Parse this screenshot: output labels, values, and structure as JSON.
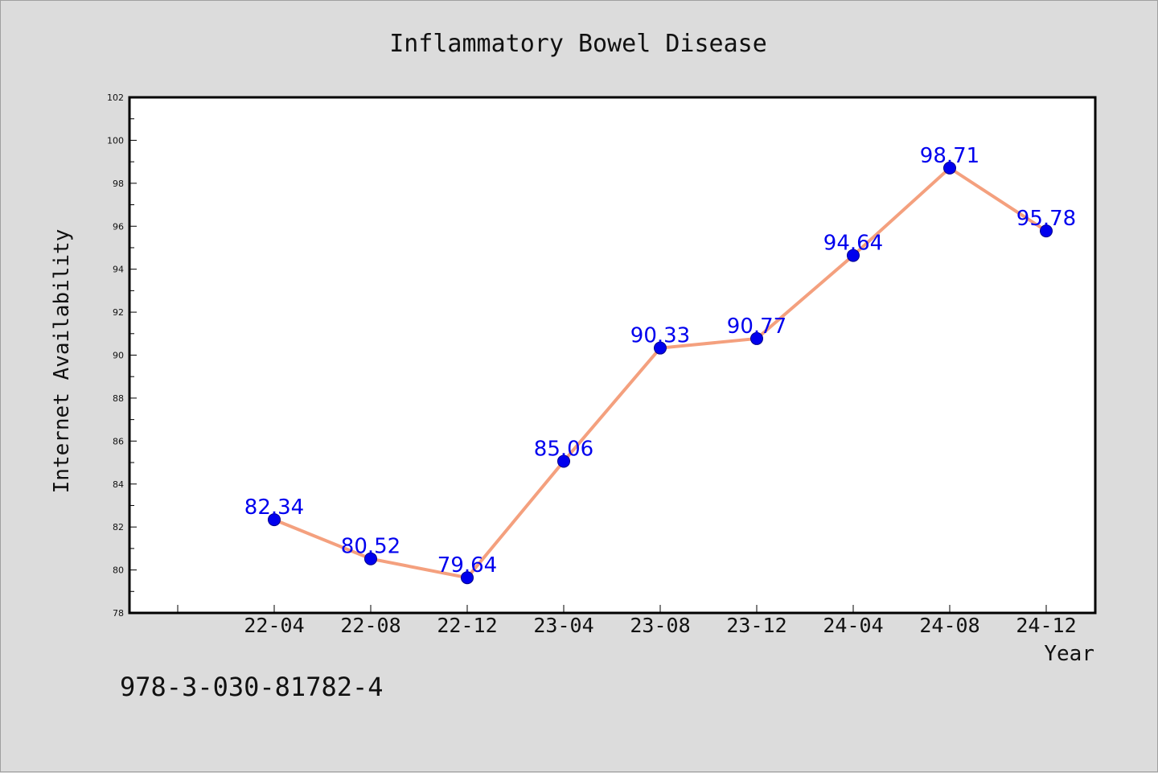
{
  "chart_data": {
    "type": "line",
    "title": "Inflammatory Bowel Disease",
    "xlabel": "Year",
    "ylabel": "Internet Availability",
    "categories": [
      "22-04",
      "22-08",
      "22-12",
      "23-04",
      "23-08",
      "23-12",
      "24-04",
      "24-08",
      "24-12"
    ],
    "series": [
      {
        "values": [
          82.34,
          80.52,
          79.64,
          85.06,
          90.33,
          90.77,
          94.64,
          98.71,
          95.78
        ]
      }
    ],
    "ylim": [
      78,
      102
    ],
    "yticks": [
      "78",
      "80",
      "82",
      "84",
      "86",
      "88",
      "90",
      "92",
      "94",
      "96",
      "98",
      "100",
      "102"
    ],
    "data_labels": [
      "82.34",
      "80.52",
      "79.64",
      "85.06",
      "90.33",
      "90.77",
      "94.64",
      "98.71",
      "95.78"
    ],
    "grid": false,
    "colors": {
      "line": "#f4a07e",
      "marker": "#0000ee",
      "label": "#0000ee",
      "axis": "#000000",
      "plot_bg": "#ffffff",
      "page_bg": "#dcdcdc"
    }
  },
  "footer": {
    "text": "978-3-030-81782-4"
  }
}
